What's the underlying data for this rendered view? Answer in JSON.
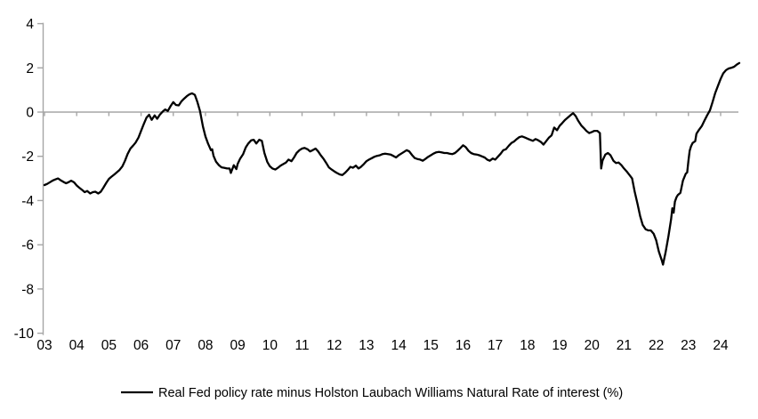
{
  "chart_data": {
    "type": "line",
    "title": "",
    "legend_position": "bottom-center",
    "grid": "zero-line-only",
    "background_color": "#ffffff",
    "axis_color": "#a6a6a6",
    "text_color": "#000000",
    "x_axis": {
      "tick_years": [
        2003,
        2004,
        2005,
        2006,
        2007,
        2008,
        2009,
        2010,
        2011,
        2012,
        2013,
        2014,
        2015,
        2016,
        2017,
        2018,
        2019,
        2020,
        2021,
        2022,
        2023,
        2024
      ],
      "tick_labels": [
        "03",
        "04",
        "05",
        "06",
        "07",
        "08",
        "09",
        "10",
        "11",
        "12",
        "13",
        "14",
        "15",
        "16",
        "17",
        "18",
        "19",
        "20",
        "21",
        "22",
        "23",
        "24"
      ],
      "range": [
        2002.95,
        2024.65
      ]
    },
    "y_axis": {
      "ticks": [
        4,
        2,
        0,
        -2,
        -4,
        -6,
        -8,
        -10
      ],
      "tick_labels": [
        "4",
        "2",
        "0",
        "-2",
        "-4",
        "-6",
        "-8",
        "-10"
      ],
      "range": [
        -10,
        4
      ]
    },
    "series": [
      {
        "name": "Real Fed policy rate minus Holston Laubach Williams Natural Rate of interest (%)",
        "color": "#000000",
        "line_width": 2.3,
        "points": [
          [
            2003.0,
            -3.3
          ],
          [
            2003.08,
            -3.25
          ],
          [
            2003.17,
            -3.17
          ],
          [
            2003.25,
            -3.1
          ],
          [
            2003.33,
            -3.05
          ],
          [
            2003.42,
            -3.0
          ],
          [
            2003.5,
            -3.08
          ],
          [
            2003.58,
            -3.15
          ],
          [
            2003.67,
            -3.22
          ],
          [
            2003.75,
            -3.17
          ],
          [
            2003.83,
            -3.1
          ],
          [
            2003.92,
            -3.18
          ],
          [
            2004.0,
            -3.32
          ],
          [
            2004.08,
            -3.42
          ],
          [
            2004.17,
            -3.52
          ],
          [
            2004.25,
            -3.62
          ],
          [
            2004.33,
            -3.57
          ],
          [
            2004.42,
            -3.68
          ],
          [
            2004.5,
            -3.62
          ],
          [
            2004.58,
            -3.6
          ],
          [
            2004.67,
            -3.68
          ],
          [
            2004.75,
            -3.6
          ],
          [
            2004.83,
            -3.42
          ],
          [
            2004.92,
            -3.2
          ],
          [
            2005.0,
            -3.02
          ],
          [
            2005.08,
            -2.92
          ],
          [
            2005.17,
            -2.82
          ],
          [
            2005.25,
            -2.72
          ],
          [
            2005.33,
            -2.62
          ],
          [
            2005.42,
            -2.45
          ],
          [
            2005.5,
            -2.2
          ],
          [
            2005.58,
            -1.9
          ],
          [
            2005.67,
            -1.65
          ],
          [
            2005.75,
            -1.52
          ],
          [
            2005.83,
            -1.38
          ],
          [
            2005.92,
            -1.15
          ],
          [
            2006.0,
            -0.85
          ],
          [
            2006.08,
            -0.55
          ],
          [
            2006.17,
            -0.25
          ],
          [
            2006.25,
            -0.12
          ],
          [
            2006.33,
            -0.35
          ],
          [
            2006.42,
            -0.15
          ],
          [
            2006.5,
            -0.3
          ],
          [
            2006.58,
            -0.12
          ],
          [
            2006.67,
            0.02
          ],
          [
            2006.75,
            0.12
          ],
          [
            2006.83,
            0.05
          ],
          [
            2006.92,
            0.28
          ],
          [
            2007.0,
            0.45
          ],
          [
            2007.08,
            0.32
          ],
          [
            2007.17,
            0.3
          ],
          [
            2007.25,
            0.48
          ],
          [
            2007.33,
            0.6
          ],
          [
            2007.42,
            0.72
          ],
          [
            2007.5,
            0.8
          ],
          [
            2007.58,
            0.85
          ],
          [
            2007.67,
            0.78
          ],
          [
            2007.75,
            0.45
          ],
          [
            2007.83,
            0.05
          ],
          [
            2007.92,
            -0.65
          ],
          [
            2008.0,
            -1.1
          ],
          [
            2008.08,
            -1.42
          ],
          [
            2008.17,
            -1.72
          ],
          [
            2008.21,
            -1.68
          ],
          [
            2008.25,
            -1.98
          ],
          [
            2008.33,
            -2.25
          ],
          [
            2008.42,
            -2.4
          ],
          [
            2008.5,
            -2.5
          ],
          [
            2008.58,
            -2.52
          ],
          [
            2008.67,
            -2.55
          ],
          [
            2008.75,
            -2.55
          ],
          [
            2008.79,
            -2.75
          ],
          [
            2008.88,
            -2.4
          ],
          [
            2008.96,
            -2.58
          ],
          [
            2009.0,
            -2.35
          ],
          [
            2009.08,
            -2.1
          ],
          [
            2009.17,
            -1.9
          ],
          [
            2009.25,
            -1.6
          ],
          [
            2009.33,
            -1.42
          ],
          [
            2009.42,
            -1.28
          ],
          [
            2009.5,
            -1.25
          ],
          [
            2009.58,
            -1.42
          ],
          [
            2009.67,
            -1.25
          ],
          [
            2009.75,
            -1.3
          ],
          [
            2009.83,
            -1.85
          ],
          [
            2009.92,
            -2.25
          ],
          [
            2010.0,
            -2.45
          ],
          [
            2010.08,
            -2.55
          ],
          [
            2010.17,
            -2.6
          ],
          [
            2010.25,
            -2.52
          ],
          [
            2010.33,
            -2.42
          ],
          [
            2010.42,
            -2.35
          ],
          [
            2010.5,
            -2.28
          ],
          [
            2010.58,
            -2.15
          ],
          [
            2010.67,
            -2.22
          ],
          [
            2010.75,
            -2.05
          ],
          [
            2010.83,
            -1.85
          ],
          [
            2010.92,
            -1.72
          ],
          [
            2011.0,
            -1.65
          ],
          [
            2011.08,
            -1.62
          ],
          [
            2011.17,
            -1.68
          ],
          [
            2011.25,
            -1.78
          ],
          [
            2011.33,
            -1.72
          ],
          [
            2011.42,
            -1.65
          ],
          [
            2011.5,
            -1.78
          ],
          [
            2011.58,
            -1.95
          ],
          [
            2011.67,
            -2.12
          ],
          [
            2011.75,
            -2.3
          ],
          [
            2011.83,
            -2.5
          ],
          [
            2011.92,
            -2.6
          ],
          [
            2012.0,
            -2.68
          ],
          [
            2012.08,
            -2.75
          ],
          [
            2012.17,
            -2.82
          ],
          [
            2012.25,
            -2.85
          ],
          [
            2012.33,
            -2.75
          ],
          [
            2012.42,
            -2.62
          ],
          [
            2012.5,
            -2.48
          ],
          [
            2012.58,
            -2.52
          ],
          [
            2012.67,
            -2.42
          ],
          [
            2012.75,
            -2.55
          ],
          [
            2012.83,
            -2.48
          ],
          [
            2012.92,
            -2.35
          ],
          [
            2013.0,
            -2.22
          ],
          [
            2013.08,
            -2.15
          ],
          [
            2013.17,
            -2.08
          ],
          [
            2013.25,
            -2.02
          ],
          [
            2013.33,
            -1.98
          ],
          [
            2013.42,
            -1.95
          ],
          [
            2013.5,
            -1.9
          ],
          [
            2013.58,
            -1.88
          ],
          [
            2013.67,
            -1.9
          ],
          [
            2013.75,
            -1.92
          ],
          [
            2013.83,
            -1.98
          ],
          [
            2013.92,
            -2.05
          ],
          [
            2014.0,
            -1.95
          ],
          [
            2014.08,
            -1.88
          ],
          [
            2014.17,
            -1.8
          ],
          [
            2014.25,
            -1.72
          ],
          [
            2014.33,
            -1.78
          ],
          [
            2014.42,
            -1.95
          ],
          [
            2014.5,
            -2.08
          ],
          [
            2014.58,
            -2.12
          ],
          [
            2014.67,
            -2.15
          ],
          [
            2014.75,
            -2.2
          ],
          [
            2014.83,
            -2.12
          ],
          [
            2014.92,
            -2.02
          ],
          [
            2015.0,
            -1.95
          ],
          [
            2015.08,
            -1.88
          ],
          [
            2015.17,
            -1.82
          ],
          [
            2015.25,
            -1.8
          ],
          [
            2015.33,
            -1.82
          ],
          [
            2015.42,
            -1.85
          ],
          [
            2015.5,
            -1.85
          ],
          [
            2015.58,
            -1.88
          ],
          [
            2015.67,
            -1.9
          ],
          [
            2015.75,
            -1.85
          ],
          [
            2015.83,
            -1.75
          ],
          [
            2015.92,
            -1.62
          ],
          [
            2016.0,
            -1.5
          ],
          [
            2016.08,
            -1.58
          ],
          [
            2016.17,
            -1.75
          ],
          [
            2016.25,
            -1.85
          ],
          [
            2016.33,
            -1.9
          ],
          [
            2016.42,
            -1.92
          ],
          [
            2016.5,
            -1.95
          ],
          [
            2016.58,
            -2.0
          ],
          [
            2016.67,
            -2.05
          ],
          [
            2016.75,
            -2.15
          ],
          [
            2016.83,
            -2.2
          ],
          [
            2016.92,
            -2.1
          ],
          [
            2017.0,
            -2.15
          ],
          [
            2017.08,
            -2.02
          ],
          [
            2017.17,
            -1.88
          ],
          [
            2017.25,
            -1.72
          ],
          [
            2017.33,
            -1.68
          ],
          [
            2017.42,
            -1.52
          ],
          [
            2017.5,
            -1.4
          ],
          [
            2017.58,
            -1.33
          ],
          [
            2017.67,
            -1.22
          ],
          [
            2017.75,
            -1.13
          ],
          [
            2017.83,
            -1.1
          ],
          [
            2017.92,
            -1.15
          ],
          [
            2018.0,
            -1.2
          ],
          [
            2018.08,
            -1.25
          ],
          [
            2018.17,
            -1.3
          ],
          [
            2018.25,
            -1.22
          ],
          [
            2018.33,
            -1.27
          ],
          [
            2018.42,
            -1.35
          ],
          [
            2018.5,
            -1.47
          ],
          [
            2018.58,
            -1.32
          ],
          [
            2018.67,
            -1.15
          ],
          [
            2018.75,
            -1.05
          ],
          [
            2018.83,
            -0.7
          ],
          [
            2018.92,
            -0.82
          ],
          [
            2019.0,
            -0.62
          ],
          [
            2019.08,
            -0.5
          ],
          [
            2019.17,
            -0.35
          ],
          [
            2019.25,
            -0.25
          ],
          [
            2019.33,
            -0.15
          ],
          [
            2019.42,
            -0.05
          ],
          [
            2019.5,
            -0.18
          ],
          [
            2019.58,
            -0.4
          ],
          [
            2019.67,
            -0.6
          ],
          [
            2019.75,
            -0.72
          ],
          [
            2019.83,
            -0.85
          ],
          [
            2019.92,
            -0.95
          ],
          [
            2020.0,
            -0.9
          ],
          [
            2020.08,
            -0.85
          ],
          [
            2020.17,
            -0.85
          ],
          [
            2020.25,
            -0.95
          ],
          [
            2020.29,
            -2.55
          ],
          [
            2020.33,
            -2.2
          ],
          [
            2020.42,
            -1.92
          ],
          [
            2020.5,
            -1.85
          ],
          [
            2020.58,
            -1.95
          ],
          [
            2020.67,
            -2.2
          ],
          [
            2020.75,
            -2.3
          ],
          [
            2020.83,
            -2.28
          ],
          [
            2020.92,
            -2.4
          ],
          [
            2021.0,
            -2.55
          ],
          [
            2021.08,
            -2.68
          ],
          [
            2021.17,
            -2.85
          ],
          [
            2021.25,
            -3.0
          ],
          [
            2021.33,
            -3.6
          ],
          [
            2021.42,
            -4.15
          ],
          [
            2021.5,
            -4.7
          ],
          [
            2021.58,
            -5.1
          ],
          [
            2021.67,
            -5.3
          ],
          [
            2021.75,
            -5.35
          ],
          [
            2021.83,
            -5.35
          ],
          [
            2021.92,
            -5.5
          ],
          [
            2022.0,
            -5.8
          ],
          [
            2022.08,
            -6.3
          ],
          [
            2022.17,
            -6.7
          ],
          [
            2022.21,
            -6.9
          ],
          [
            2022.29,
            -6.35
          ],
          [
            2022.38,
            -5.6
          ],
          [
            2022.46,
            -4.85
          ],
          [
            2022.5,
            -4.35
          ],
          [
            2022.54,
            -4.55
          ],
          [
            2022.58,
            -4.05
          ],
          [
            2022.63,
            -3.85
          ],
          [
            2022.67,
            -3.75
          ],
          [
            2022.75,
            -3.65
          ],
          [
            2022.83,
            -3.1
          ],
          [
            2022.92,
            -2.78
          ],
          [
            2022.96,
            -2.73
          ],
          [
            2023.0,
            -2.2
          ],
          [
            2023.04,
            -1.75
          ],
          [
            2023.08,
            -1.55
          ],
          [
            2023.13,
            -1.4
          ],
          [
            2023.17,
            -1.35
          ],
          [
            2023.21,
            -1.32
          ],
          [
            2023.25,
            -0.98
          ],
          [
            2023.33,
            -0.8
          ],
          [
            2023.42,
            -0.62
          ],
          [
            2023.5,
            -0.38
          ],
          [
            2023.58,
            -0.15
          ],
          [
            2023.67,
            0.08
          ],
          [
            2023.75,
            0.45
          ],
          [
            2023.83,
            0.85
          ],
          [
            2023.92,
            1.2
          ],
          [
            2024.0,
            1.5
          ],
          [
            2024.08,
            1.75
          ],
          [
            2024.17,
            1.9
          ],
          [
            2024.25,
            1.97
          ],
          [
            2024.33,
            2.0
          ],
          [
            2024.42,
            2.05
          ],
          [
            2024.5,
            2.15
          ],
          [
            2024.58,
            2.22
          ]
        ]
      }
    ]
  }
}
